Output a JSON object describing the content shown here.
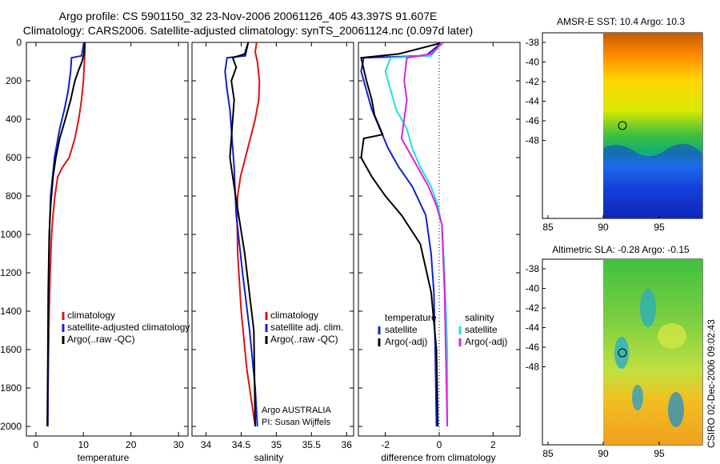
{
  "header": {
    "title_line1": "Argo profile: CS 5901150_32 23-Nov-2006 20061126_405 43.397S 91.607E",
    "title_line2": "Climatology: CARS2006. Satellite-adjusted climatology: synTS_20061124.nc (0.097d later)"
  },
  "colors": {
    "climatology": "#e01010",
    "satellite": "#1020d0",
    "argo": "#000000",
    "sal_satellite": "#20e0e0",
    "sal_argo": "#e020e0"
  },
  "chart_data": [
    {
      "type": "line",
      "xlabel": "temperature",
      "ylim": [
        2050,
        0
      ],
      "xlim": [
        -2,
        32
      ],
      "xticks": [
        0,
        10,
        20,
        30
      ],
      "yticks": [
        0,
        200,
        400,
        600,
        800,
        1000,
        1200,
        1400,
        1600,
        1800,
        2000
      ],
      "series": [
        {
          "name": "climatology",
          "color": "#e01010",
          "x": [
            10.3,
            10.3,
            10.2,
            10.0,
            9.6,
            9.0,
            8.2,
            7.0,
            5.6,
            4.6,
            4.0,
            3.6,
            3.3,
            3.0,
            2.8,
            2.6,
            2.5
          ],
          "y": [
            0,
            50,
            100,
            200,
            300,
            400,
            500,
            600,
            650,
            700,
            800,
            900,
            1000,
            1200,
            1400,
            1700,
            2000
          ]
        },
        {
          "name": "satellite-adjusted climatology",
          "color": "#1020d0",
          "x": [
            10.1,
            9.6,
            7.5,
            7.3,
            6.8,
            6.0,
            5.0,
            4.5,
            3.9,
            3.5,
            3.1,
            2.9,
            2.7,
            2.6,
            2.5
          ],
          "y": [
            0,
            70,
            80,
            150,
            250,
            350,
            450,
            520,
            600,
            700,
            800,
            950,
            1200,
            1600,
            2000
          ]
        },
        {
          "name": "Argo(..raw -QC)",
          "color": "#000000",
          "x": [
            10.3,
            10.1,
            9.7,
            8.9,
            8.2,
            7.3,
            6.2,
            5.0,
            4.2,
            3.6,
            3.1,
            2.8,
            2.6,
            2.5,
            2.4
          ],
          "y": [
            0,
            60,
            100,
            150,
            200,
            300,
            400,
            500,
            600,
            700,
            850,
            1000,
            1300,
            1700,
            2000
          ]
        }
      ],
      "legend": [
        "climatology",
        "satellite-adjusted climatology",
        "Argo(..raw -QC)"
      ],
      "legend_position": "lower-right"
    },
    {
      "type": "line",
      "xlabel": "salinity",
      "ylim": [
        2050,
        0
      ],
      "xlim": [
        33.8,
        36.1
      ],
      "xticks": [
        34,
        34.5,
        35,
        35.5,
        36
      ],
      "series": [
        {
          "name": "climatology",
          "color": "#e01010",
          "x": [
            34.72,
            34.7,
            34.73,
            34.76,
            34.75,
            34.7,
            34.63,
            34.56,
            34.49,
            34.45,
            34.44,
            34.45,
            34.5,
            34.58,
            34.66,
            34.7
          ],
          "y": [
            0,
            50,
            100,
            200,
            300,
            400,
            500,
            600,
            700,
            800,
            900,
            1100,
            1400,
            1700,
            1900,
            2000
          ]
        },
        {
          "name": "satellite adj. clim.",
          "color": "#1020d0",
          "x": [
            34.6,
            34.56,
            34.3,
            34.27,
            34.3,
            34.34,
            34.36,
            34.38,
            34.4,
            34.41,
            34.43,
            34.52,
            34.62,
            34.7,
            34.73
          ],
          "y": [
            0,
            70,
            80,
            150,
            250,
            350,
            450,
            550,
            650,
            750,
            900,
            1200,
            1500,
            1800,
            2000
          ]
        },
        {
          "name": "Argo(..raw -QC)",
          "color": "#000000",
          "x": [
            34.6,
            34.55,
            34.38,
            34.43,
            34.36,
            34.4,
            34.38,
            34.36,
            34.34,
            34.38,
            34.42,
            34.55,
            34.68,
            34.7
          ],
          "y": [
            0,
            60,
            80,
            130,
            200,
            300,
            400,
            500,
            600,
            700,
            800,
            1100,
            1500,
            2000
          ]
        }
      ],
      "legend": [
        "climatology",
        "satellite adj. clim.",
        "Argo(..raw -QC)"
      ],
      "annotations": [
        "Argo AUSTRALIA",
        "PI: Susan Wijffels"
      ]
    },
    {
      "type": "line",
      "xlabel": "difference from climatology",
      "ylim": [
        2050,
        0
      ],
      "xlim": [
        -3,
        3
      ],
      "xticks": [
        -2,
        0,
        2
      ],
      "legend_temperature_header": "temperature",
      "legend_salinity_header": "salinity",
      "series": [
        {
          "name": "satellite",
          "group": "temperature",
          "color": "#1020d0",
          "x": [
            0.1,
            -0.5,
            -2.8,
            -2.9,
            -2.7,
            -2.5,
            -2.2,
            -1.9,
            -1.5,
            -1.0,
            -0.5,
            -0.3,
            -0.2,
            -0.15,
            -0.1
          ],
          "y": [
            0,
            70,
            80,
            150,
            250,
            350,
            450,
            550,
            650,
            750,
            900,
            1100,
            1300,
            1600,
            2000
          ]
        },
        {
          "name": "Argo(-adj)",
          "group": "temperature",
          "color": "#000000",
          "x": [
            0.15,
            -1.5,
            -2.9,
            -2.7,
            -2.5,
            -2.4,
            -2.1,
            -2.8,
            -2.9,
            -2.5,
            -2.0,
            -1.4,
            -0.7,
            -0.3,
            -0.1,
            -0.05
          ],
          "y": [
            0,
            60,
            80,
            200,
            300,
            380,
            480,
            500,
            600,
            700,
            800,
            900,
            1050,
            1300,
            1600,
            2000
          ]
        },
        {
          "name": "satellite",
          "group": "salinity",
          "color": "#20e0e0",
          "x": [
            0.1,
            -0.3,
            -1.8,
            -2.0,
            -1.8,
            -1.6,
            -1.2,
            -1.0,
            -0.7,
            -0.3,
            -0.05,
            0.1,
            0.2,
            0.3,
            0.3
          ],
          "y": [
            0,
            70,
            80,
            150,
            250,
            350,
            450,
            550,
            650,
            750,
            850,
            950,
            1200,
            1600,
            2000
          ]
        },
        {
          "name": "Argo(-adj)",
          "group": "salinity",
          "color": "#e020e0",
          "x": [
            0.15,
            -0.3,
            -1.2,
            -1.3,
            -1.2,
            -1.3,
            -1.4,
            -1.2,
            -0.8,
            -0.4,
            -0.1,
            0.1,
            0.2,
            0.3
          ],
          "y": [
            0,
            60,
            80,
            200,
            300,
            400,
            500,
            550,
            650,
            750,
            850,
            950,
            1300,
            2000
          ]
        }
      ]
    }
  ],
  "maps": {
    "sst": {
      "title": "AMSR-E SST: 10.4  Argo: 10.3",
      "xticks": [
        "85",
        "90",
        "95"
      ],
      "yticks": [
        "-38",
        "-40",
        "-42",
        "-44",
        "-46",
        "-48"
      ]
    },
    "sla": {
      "title": "Altimetric SLA: -0.28  Argo: -0.15",
      "xticks": [
        "85",
        "90",
        "95"
      ],
      "yticks": [
        "-38",
        "-40",
        "-42",
        "-44",
        "-46",
        "-48"
      ]
    },
    "credit": "CSIRO 02-Dec-2006 09:02:43"
  }
}
